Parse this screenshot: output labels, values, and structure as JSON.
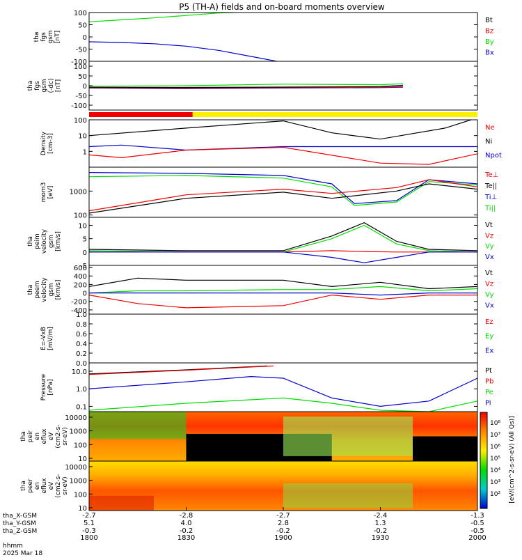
{
  "title": "P5 (TH-A) fields and on-board moments overview",
  "colors": {
    "black": "#000000",
    "red": "#ee0000",
    "green": "#00dd00",
    "blue": "#0000cc",
    "bar_red": "#ee0000",
    "bar_yellow": "#ffee00"
  },
  "chart_data": {
    "type": "line",
    "time": {
      "label": "hhmm",
      "date": "2025 Mar 18",
      "ticks": [
        "1800",
        "1830",
        "1900",
        "1930",
        "2000"
      ]
    },
    "ephemeris": [
      {
        "label": "tha_X-GSM",
        "values": [
          "-2.7",
          "-2.8",
          "-2.7",
          "-2.4",
          "-1.3"
        ]
      },
      {
        "label": "tha_Y-GSM",
        "values": [
          "5.1",
          "4.0",
          "2.8",
          "1.3",
          "-0.5"
        ]
      },
      {
        "label": "tha_Z-GSM",
        "values": [
          "-0.3",
          "-0.2",
          "-0.2",
          "-0.2",
          "-0.5"
        ]
      }
    ],
    "panels": [
      {
        "id": "fgs",
        "ylabel": [
          "tha",
          "fgs",
          "gsm",
          "[nT]"
        ],
        "yticks": [
          "100",
          "50",
          "0",
          "-50",
          "-100"
        ],
        "ylim": [
          -100,
          100
        ],
        "legend": [
          {
            "name": "Bt",
            "color": "#000000"
          },
          {
            "name": "Bz",
            "color": "#ee0000"
          },
          {
            "name": "By",
            "color": "#00dd00"
          },
          {
            "name": "Bx",
            "color": "#0000cc"
          }
        ],
        "series": [
          {
            "name": "By",
            "x": [
              1800,
              1810,
              1820,
              1830,
              1840,
              1845
            ],
            "y": [
              62,
              70,
              78,
              88,
              98,
              100
            ]
          },
          {
            "name": "Bx",
            "x": [
              1800,
              1810,
              1820,
              1830,
              1840,
              1850,
              1858
            ],
            "y": [
              -20,
              -23,
              -28,
              -38,
              -55,
              -80,
              -100
            ]
          }
        ]
      },
      {
        "id": "fgs_dc",
        "ylabel": [
          "tha",
          "fgs",
          "gsm",
          "(-dc)",
          "[nT]"
        ],
        "yticks": [
          "100",
          "50",
          "0",
          "-50",
          "-100"
        ],
        "ylim": [
          -125,
          125
        ],
        "legend": [],
        "series": [
          {
            "name": "By",
            "x": [
              1800,
              1830,
              1900,
              1930,
              1937
            ],
            "y": [
              -3,
              0,
              8,
              5,
              10
            ]
          },
          {
            "name": "Bx",
            "x": [
              1800,
              1830,
              1900,
              1930,
              1937
            ],
            "y": [
              -12,
              -15,
              -12,
              -10,
              -8
            ]
          },
          {
            "name": "Bz",
            "x": [
              1800,
              1830,
              1900,
              1930,
              1937
            ],
            "y": [
              -10,
              -12,
              -10,
              -8,
              -5
            ]
          },
          {
            "name": "Bt",
            "x": [
              1800,
              1830,
              1900,
              1930,
              1937
            ],
            "y": [
              -8,
              -9,
              -7,
              -5,
              2
            ]
          }
        ]
      },
      {
        "id": "density",
        "ylabel": [
          "Density",
          "[cm-3]"
        ],
        "yticks": [
          "100",
          "10",
          "1"
        ],
        "log": true,
        "ylim": [
          0.1,
          100
        ],
        "legend": [
          {
            "name": "Ne",
            "color": "#ee0000"
          },
          {
            "name": "Ni",
            "color": "#000000"
          },
          {
            "name": "Npot",
            "color": "#0000cc"
          }
        ],
        "series": [
          {
            "name": "Ni",
            "x": [
              1800,
              1830,
              1900,
              1915,
              1930,
              1950,
              1958
            ],
            "y": [
              10,
              30,
              85,
              15,
              6,
              30,
              100
            ]
          },
          {
            "name": "Npot",
            "x": [
              1800,
              1810,
              1830,
              1900,
              1930,
              2000
            ],
            "y": [
              2,
              2.5,
              1.2,
              2,
              2,
              2
            ]
          },
          {
            "name": "Ne",
            "x": [
              1800,
              1810,
              1830,
              1900,
              1930,
              1945,
              2000
            ],
            "y": [
              0.6,
              0.4,
              1.2,
              1.8,
              0.18,
              0.15,
              0.7
            ]
          }
        ]
      },
      {
        "id": "moms",
        "ylabel": [
          "mom3",
          "[eV]"
        ],
        "yticks": [
          "1000",
          "100"
        ],
        "log": true,
        "ylim": [
          80,
          10000
        ],
        "legend": [
          {
            "name": "Te⊥",
            "color": "#ee0000"
          },
          {
            "name": "Te||",
            "color": "#000000"
          },
          {
            "name": "Ti⊥",
            "color": "#0000cc"
          },
          {
            "name": "Ti||",
            "color": "#00dd00"
          }
        ],
        "series": [
          {
            "name": "Ti⊥",
            "x": [
              1800,
              1830,
              1900,
              1915,
              1922,
              1935,
              1945,
              2000
            ],
            "y": [
              6000,
              5500,
              4500,
              2000,
              300,
              400,
              3000,
              2000
            ]
          },
          {
            "name": "Ti||",
            "x": [
              1800,
              1830,
              1900,
              1915,
              1922,
              1935,
              1945,
              2000
            ],
            "y": [
              4000,
              4500,
              3500,
              1500,
              250,
              350,
              2500,
              1800
            ]
          },
          {
            "name": "Te⊥",
            "x": [
              1800,
              1830,
              1900,
              1915,
              1935,
              1945,
              2000
            ],
            "y": [
              150,
              700,
              1200,
              800,
              1400,
              3000,
              1500
            ]
          },
          {
            "name": "Te||",
            "x": [
              1800,
              1830,
              1900,
              1915,
              1935,
              1945,
              2000
            ],
            "y": [
              120,
              500,
              900,
              500,
              1000,
              2000,
              1200
            ]
          }
        ]
      },
      {
        "id": "peim",
        "ylabel": [
          "tha",
          "peim",
          "velocity",
          "gsm",
          "[km/s]"
        ],
        "yticks": [
          "10",
          "5",
          "0",
          "-5"
        ],
        "ylim": [
          -5,
          13
        ],
        "legend": [
          {
            "name": "Vt",
            "color": "#000000"
          },
          {
            "name": "Vz",
            "color": "#ee0000"
          },
          {
            "name": "Vy",
            "color": "#00dd00"
          },
          {
            "name": "Vx",
            "color": "#0000cc"
          }
        ],
        "series": [
          {
            "name": "Vt",
            "x": [
              1800,
              1830,
              1900,
              1915,
              1925,
              1935,
              1945,
              2000
            ],
            "y": [
              1,
              0.5,
              0.5,
              6,
              11,
              4,
              1,
              0.5
            ]
          },
          {
            "name": "Vy",
            "x": [
              1800,
              1830,
              1900,
              1915,
              1925,
              1935,
              1945,
              2000
            ],
            "y": [
              0.5,
              0,
              0,
              5,
              10,
              3,
              0.5,
              0
            ]
          },
          {
            "name": "Vz",
            "x": [
              1800,
              1830,
              1900,
              1915,
              1925,
              1935,
              1945,
              2000
            ],
            "y": [
              0,
              0,
              0,
              0.5,
              0.2,
              0,
              0,
              0
            ]
          },
          {
            "name": "Vx",
            "x": [
              1800,
              1830,
              1900,
              1915,
              1925,
              1935,
              1945,
              2000
            ],
            "y": [
              0,
              0,
              0,
              -2,
              -4,
              -2,
              0,
              0
            ]
          }
        ]
      },
      {
        "id": "peem",
        "ylabel": [
          "tha",
          "peem",
          "velocity",
          "gsm",
          "[km/s]"
        ],
        "yticks": [
          "600",
          "400",
          "200",
          "0",
          "-200",
          "-400"
        ],
        "ylim": [
          -500,
          650
        ],
        "legend": [
          {
            "name": "Vt",
            "color": "#000000"
          },
          {
            "name": "Vz",
            "color": "#ee0000"
          },
          {
            "name": "Vy",
            "color": "#00dd00"
          },
          {
            "name": "Vx",
            "color": "#0000cc"
          }
        ],
        "series": [
          {
            "name": "Vt",
            "x": [
              1800,
              1815,
              1830,
              1900,
              1915,
              1930,
              1945,
              2000
            ],
            "y": [
              150,
              350,
              300,
              300,
              150,
              250,
              100,
              150
            ]
          },
          {
            "name": "Vz",
            "x": [
              1800,
              1815,
              1830,
              1900,
              1915,
              1930,
              1945,
              2000
            ],
            "y": [
              -50,
              -250,
              -350,
              -300,
              -50,
              -150,
              -50,
              -50
            ]
          },
          {
            "name": "Vy",
            "x": [
              1800,
              1815,
              1830,
              1900,
              1915,
              1930,
              1945,
              2000
            ],
            "y": [
              0,
              50,
              50,
              80,
              80,
              150,
              50,
              100
            ]
          },
          {
            "name": "Vx",
            "x": [
              1800,
              1815,
              1830,
              1900,
              1915,
              1930,
              1945,
              2000
            ],
            "y": [
              0,
              0,
              0,
              0,
              0,
              -50,
              0,
              0
            ]
          }
        ]
      },
      {
        "id": "efield",
        "ylabel": [
          "E=-VxB",
          "[mV/m]"
        ],
        "yticks": [
          "1.0",
          "0.8",
          "0.6",
          "0.4",
          "0.2",
          "0.0"
        ],
        "ylim": [
          0,
          1
        ],
        "legend": [
          {
            "name": "Ez",
            "color": "#ee0000"
          },
          {
            "name": "Ey",
            "color": "#00dd00"
          },
          {
            "name": "Ex",
            "color": "#0000cc"
          }
        ],
        "series": []
      },
      {
        "id": "pressure",
        "ylabel": [
          "Pressure",
          "[nPa]"
        ],
        "yticks": [
          "10.0",
          "1.0",
          "0.1"
        ],
        "log": true,
        "ylim": [
          0.05,
          30
        ],
        "legend": [
          {
            "name": "Pt",
            "color": "#000000"
          },
          {
            "name": "Pb",
            "color": "#ee0000"
          },
          {
            "name": "Pe",
            "color": "#00dd00"
          },
          {
            "name": "Pi",
            "color": "#0000cc"
          }
        ],
        "series": [
          {
            "name": "Pt",
            "x": [
              1800,
              1830,
              1855
            ],
            "y": [
              7,
              12,
              20
            ]
          },
          {
            "name": "Pb",
            "x": [
              1800,
              1830,
              1857
            ],
            "y": [
              6.5,
              11.5,
              20
            ]
          },
          {
            "name": "Pi",
            "x": [
              1800,
              1830,
              1850,
              1900,
              1915,
              1930,
              1945,
              2000
            ],
            "y": [
              1,
              2.5,
              5,
              4,
              0.3,
              0.1,
              0.2,
              4
            ]
          },
          {
            "name": "Pe",
            "x": [
              1800,
              1830,
              1900,
              1915,
              1930,
              1945,
              2000
            ],
            "y": [
              0.06,
              0.15,
              0.3,
              0.15,
              0.06,
              0.05,
              0.2
            ]
          }
        ]
      },
      {
        "id": "peir",
        "type": "spectrogram",
        "ylabel": [
          "tha",
          "peir",
          "en",
          "eflux",
          "eV",
          "(cm2-s-",
          "sr-eV)"
        ],
        "yticks": [
          "10000",
          "1000",
          "100",
          "10"
        ]
      },
      {
        "id": "peer",
        "type": "spectrogram",
        "ylabel": [
          "tha",
          "peer",
          "en",
          "eflux",
          "eV",
          "(cm2-s-",
          "sr-eV)"
        ],
        "yticks": [
          "10000",
          "1000",
          "100",
          "10"
        ]
      }
    ],
    "colorbar": {
      "label": "[eV/(cm^2-s-sr-eV) (All Qs)]",
      "ticks": [
        "10⁸",
        "10⁷",
        "10⁶",
        "10⁵",
        "10⁴",
        "10³",
        "10²"
      ]
    }
  }
}
